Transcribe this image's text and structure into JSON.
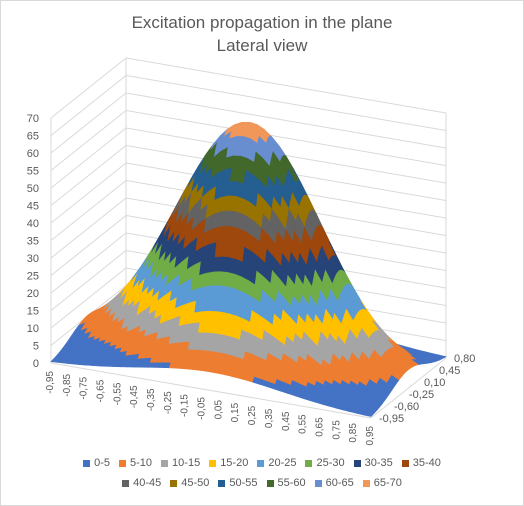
{
  "chart_data": {
    "type": "surface",
    "title_line1": "Excitation propagation in the plane",
    "title_line2": "Lateral view",
    "z_ticks": [
      "0",
      "5",
      "10",
      "15",
      "20",
      "25",
      "30",
      "35",
      "40",
      "45",
      "50",
      "55",
      "60",
      "65",
      "70"
    ],
    "zlim": [
      0,
      70
    ],
    "x_ticks": [
      "-0,95",
      "-0,85",
      "-0,75",
      "-0,65",
      "-0,55",
      "-0,45",
      "-0,35",
      "-0,25",
      "-0,15",
      "-0,05",
      "0,05",
      "0,15",
      "0,25",
      "0,35",
      "0,45",
      "0,55",
      "0,65",
      "0,75",
      "0,85",
      "0,95"
    ],
    "y_ticks": [
      "-0,95",
      "-0,60",
      "-0,25",
      "0,10",
      "0,45",
      "0,80"
    ],
    "xlim": [
      -0.95,
      0.95
    ],
    "ylim": [
      -0.95,
      0.95
    ],
    "surface_peak": 68,
    "surface_shape": "Gaussian hill centered at x=0, y=0, about 68 at center, falling toward 0 at the edges",
    "bands": [
      {
        "label": "0-5",
        "color": "#4472c4"
      },
      {
        "label": "5-10",
        "color": "#ed7d31"
      },
      {
        "label": "10-15",
        "color": "#a5a5a5"
      },
      {
        "label": "15-20",
        "color": "#ffc000"
      },
      {
        "label": "20-25",
        "color": "#5b9bd5"
      },
      {
        "label": "25-30",
        "color": "#70ad47"
      },
      {
        "label": "30-35",
        "color": "#264478"
      },
      {
        "label": "35-40",
        "color": "#9e480e"
      },
      {
        "label": "40-45",
        "color": "#636363"
      },
      {
        "label": "45-50",
        "color": "#997300"
      },
      {
        "label": "50-55",
        "color": "#255e91"
      },
      {
        "label": "55-60",
        "color": "#43682b"
      },
      {
        "label": "60-65",
        "color": "#698ed0"
      },
      {
        "label": "65-70",
        "color": "#f1975a"
      }
    ],
    "legend_position": "bottom",
    "gridlines": true
  }
}
